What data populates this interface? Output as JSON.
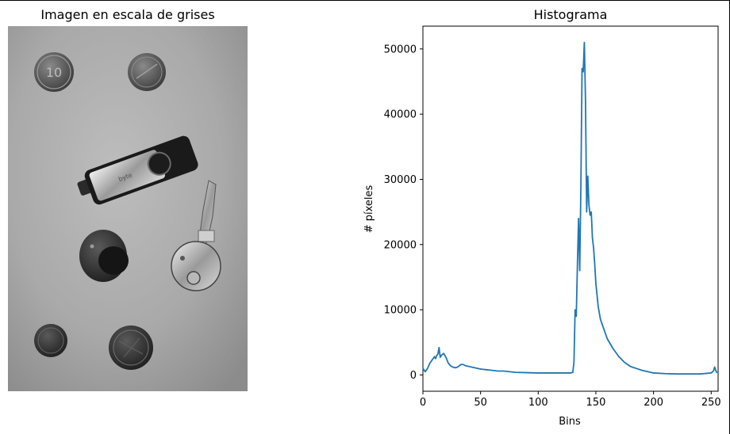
{
  "left_panel": {
    "title": "Imagen en escala de grises",
    "coin_text": "10",
    "usb_text": "byte"
  },
  "chart_data": {
    "type": "line",
    "title": "Histograma",
    "xlabel": "Bins",
    "ylabel": "# píxeles",
    "xlim": [
      0,
      256
    ],
    "ylim": [
      -2500,
      53500
    ],
    "xticks": [
      0,
      50,
      100,
      150,
      200,
      250
    ],
    "yticks": [
      0,
      10000,
      20000,
      30000,
      40000,
      50000
    ],
    "grid": false,
    "color": "#1f77b4",
    "series": [
      {
        "x": [
          0,
          2,
          4,
          6,
          8,
          10,
          11,
          12,
          13,
          14,
          15,
          16,
          18,
          20,
          22,
          24,
          26,
          28,
          30,
          33,
          35,
          37,
          40,
          45,
          50,
          55,
          60,
          65,
          70,
          80,
          90,
          100,
          110,
          120,
          128,
          130,
          131,
          132,
          133,
          134,
          135,
          136,
          137,
          138,
          139,
          140,
          141,
          142,
          143,
          144,
          145,
          146,
          147,
          148,
          149,
          150,
          152,
          154,
          156,
          158,
          160,
          165,
          170,
          175,
          180,
          185,
          190,
          195,
          200,
          210,
          220,
          230,
          240,
          250,
          252,
          253,
          254,
          255
        ],
        "values": [
          1000,
          500,
          1000,
          1800,
          2300,
          2800,
          2500,
          3000,
          3200,
          4200,
          2700,
          3000,
          3300,
          2700,
          1800,
          1400,
          1200,
          1100,
          1200,
          1600,
          1600,
          1400,
          1300,
          1100,
          900,
          800,
          700,
          600,
          600,
          400,
          350,
          300,
          300,
          300,
          300,
          400,
          2000,
          10000,
          9000,
          17000,
          24000,
          16000,
          29000,
          47000,
          46500,
          51000,
          42000,
          25000,
          30500,
          26000,
          24500,
          25000,
          21000,
          19500,
          17000,
          14000,
          10500,
          8500,
          7500,
          6500,
          5500,
          4000,
          2800,
          1900,
          1300,
          1000,
          700,
          500,
          300,
          200,
          150,
          150,
          150,
          300,
          600,
          1200,
          700,
          300
        ]
      }
    ]
  }
}
